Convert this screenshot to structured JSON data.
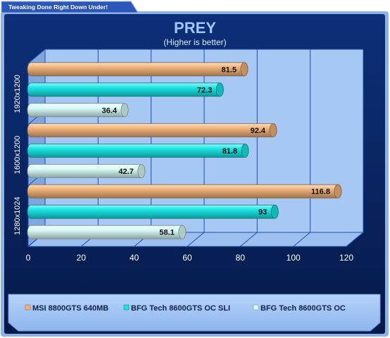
{
  "banner": {
    "text": "Tweaking Done Right Down Under!"
  },
  "colors": {
    "background": "#0b2a6f",
    "border": "#8fb2e6",
    "plot_bg": "#a8c8f4",
    "grid": "#1b4fa8",
    "title": "#9fc6ff",
    "legend_bg": "#9bc0f3"
  },
  "chart_data": {
    "type": "bar",
    "orientation": "horizontal",
    "style": "3d-cylinder",
    "title": "PREY",
    "subtitle": "(Higher is better)",
    "xlabel": "",
    "ylabel": "",
    "xlim": [
      0,
      120
    ],
    "x_ticks": [
      "0",
      "20",
      "40",
      "60",
      "80",
      "100",
      "120"
    ],
    "categories": [
      "1920x1200",
      "1600x1200",
      "1280x1024"
    ],
    "grid": true,
    "legend_position": "bottom",
    "series": [
      {
        "name": "MSI 8800GTS 640MB",
        "color": "#f2b37a",
        "values": [
          81.5,
          92.4,
          116.8
        ],
        "labels": [
          "81.5",
          "92.4",
          "116.8"
        ]
      },
      {
        "name": "BFG Tech 8600GTS OC  SLI",
        "color": "#19e6e6",
        "values": [
          72.3,
          81.8,
          93
        ],
        "labels": [
          "72.3",
          "81.8",
          "93"
        ]
      },
      {
        "name": "BFG Tech 8600GTS OC",
        "color": "#d8fbf8",
        "values": [
          36.4,
          42.7,
          58.1
        ],
        "labels": [
          "36.4",
          "42.7",
          "58.1"
        ]
      }
    ]
  }
}
